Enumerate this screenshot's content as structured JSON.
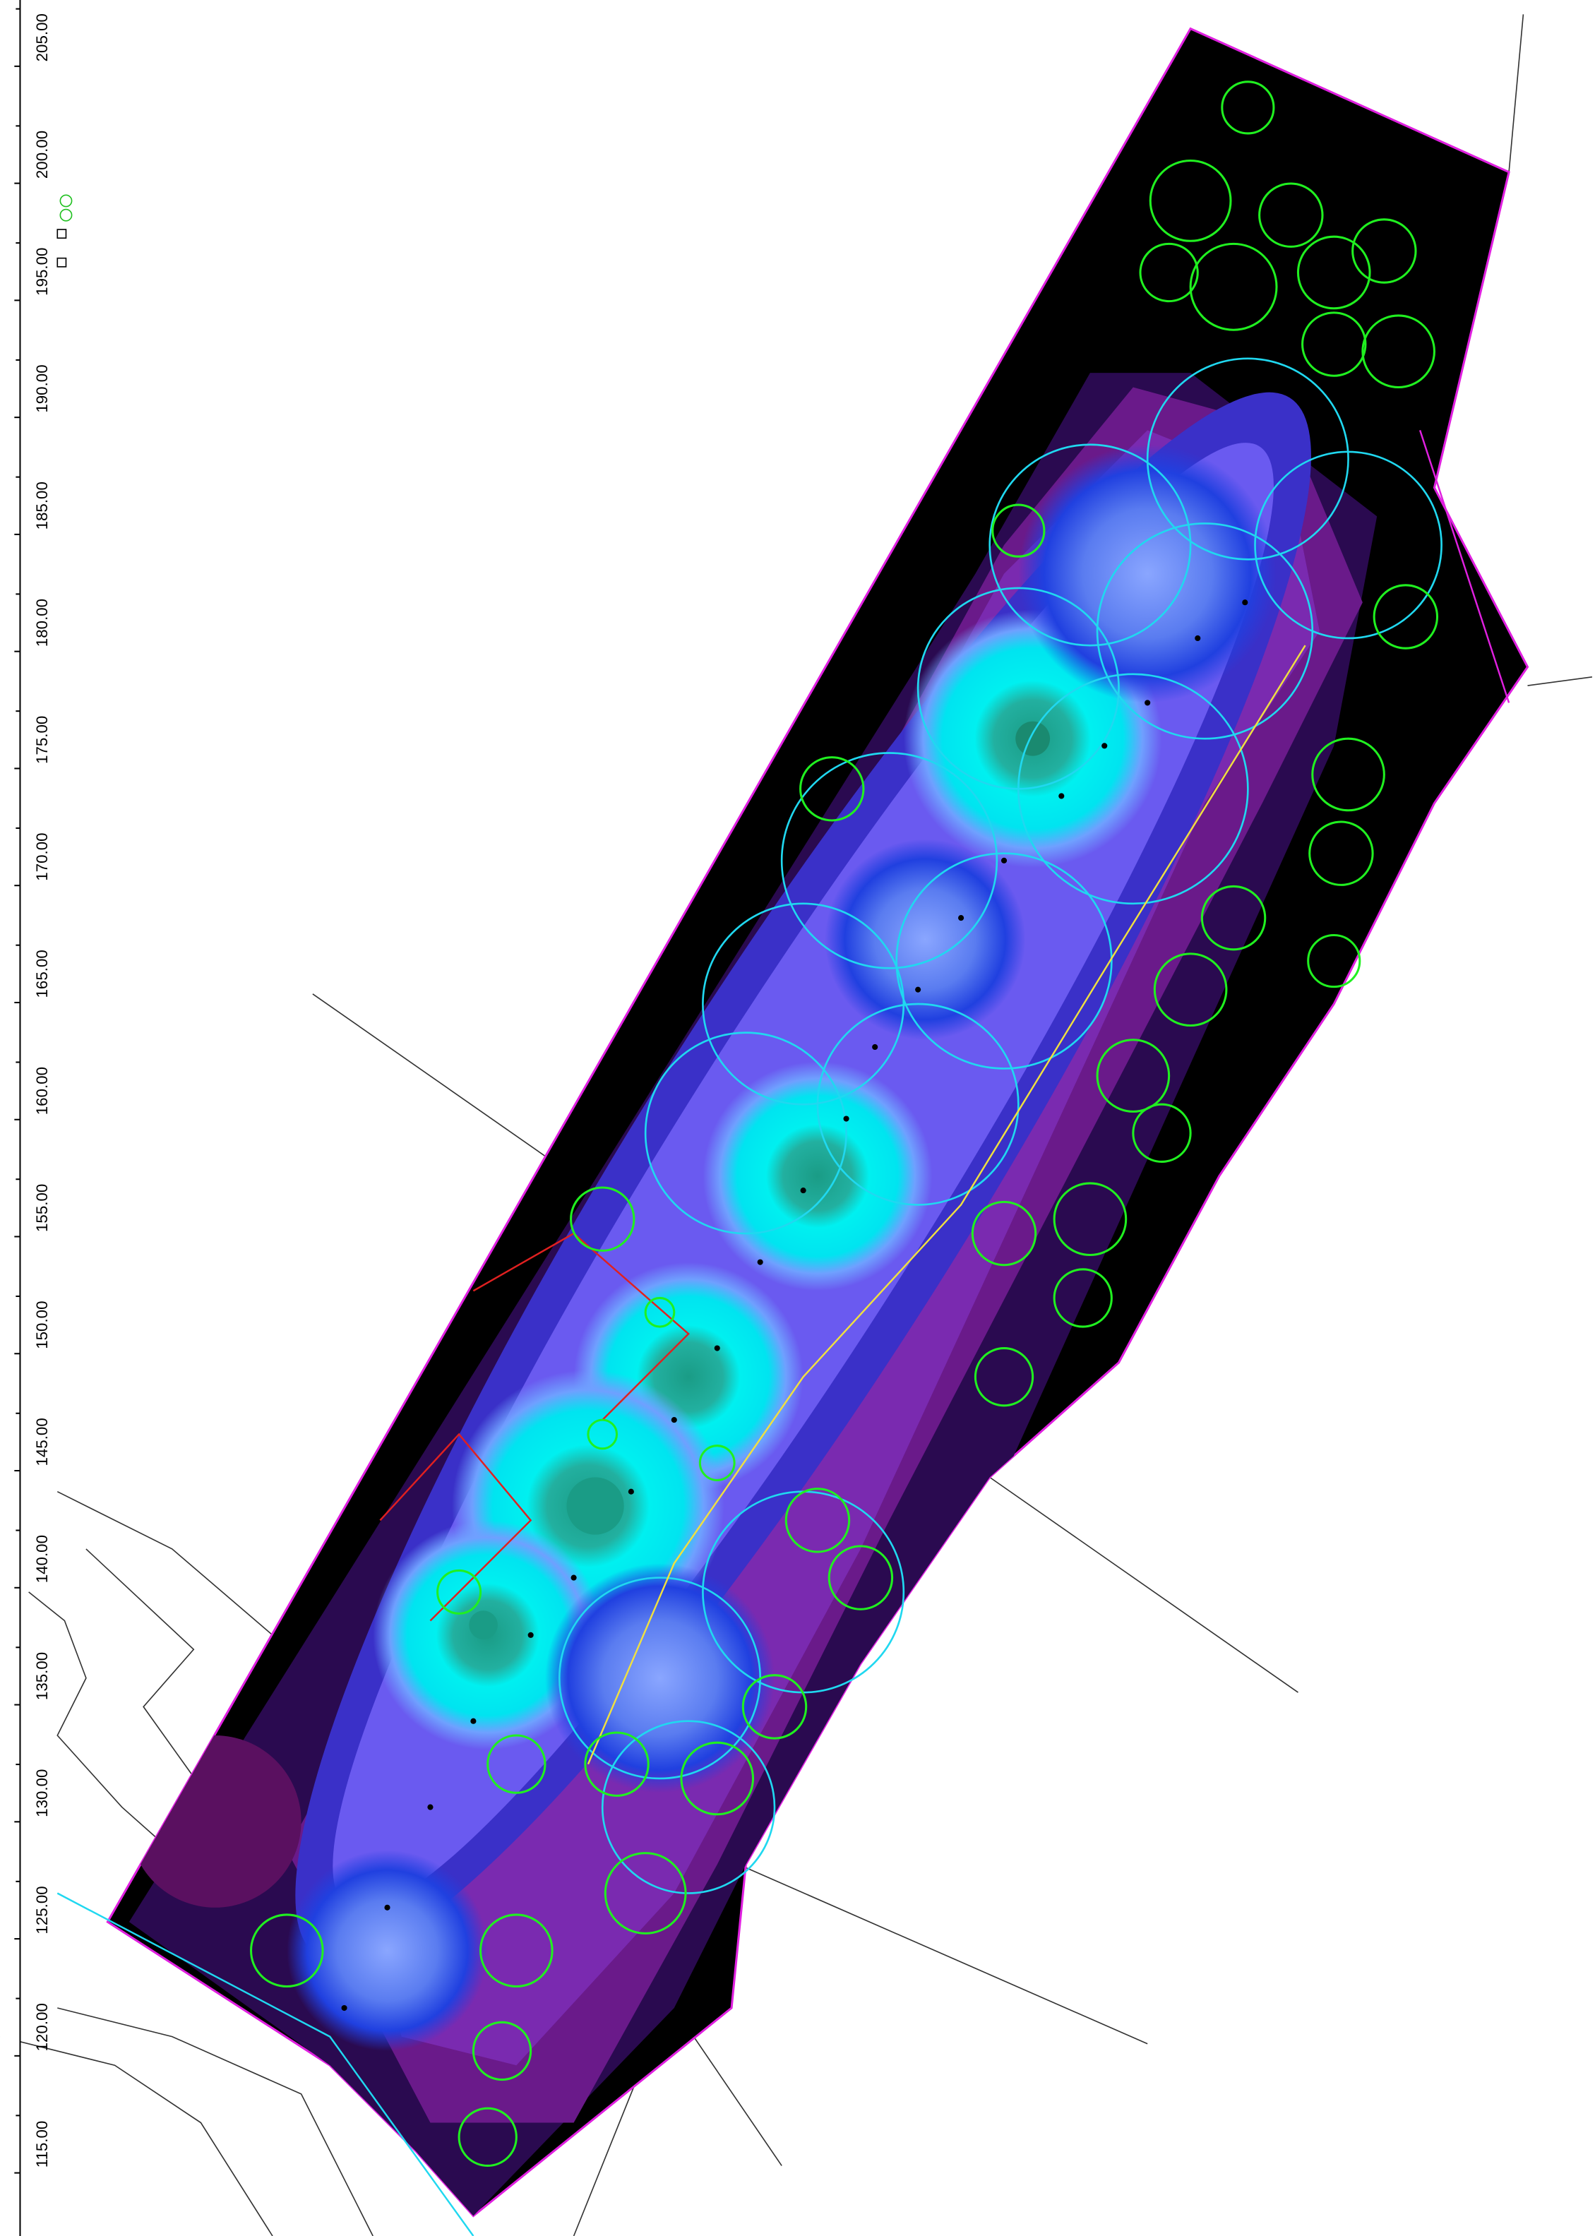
{
  "ruler": {
    "labels": [
      "115.00",
      "120.00",
      "125.00",
      "130.00",
      "135.00",
      "140.00",
      "145.00",
      "150.00",
      "155.00",
      "160.00",
      "165.00",
      "170.00",
      "175.00",
      "180.00",
      "185.00",
      "190.00",
      "195.00",
      "200.00",
      "205.00"
    ]
  }
}
